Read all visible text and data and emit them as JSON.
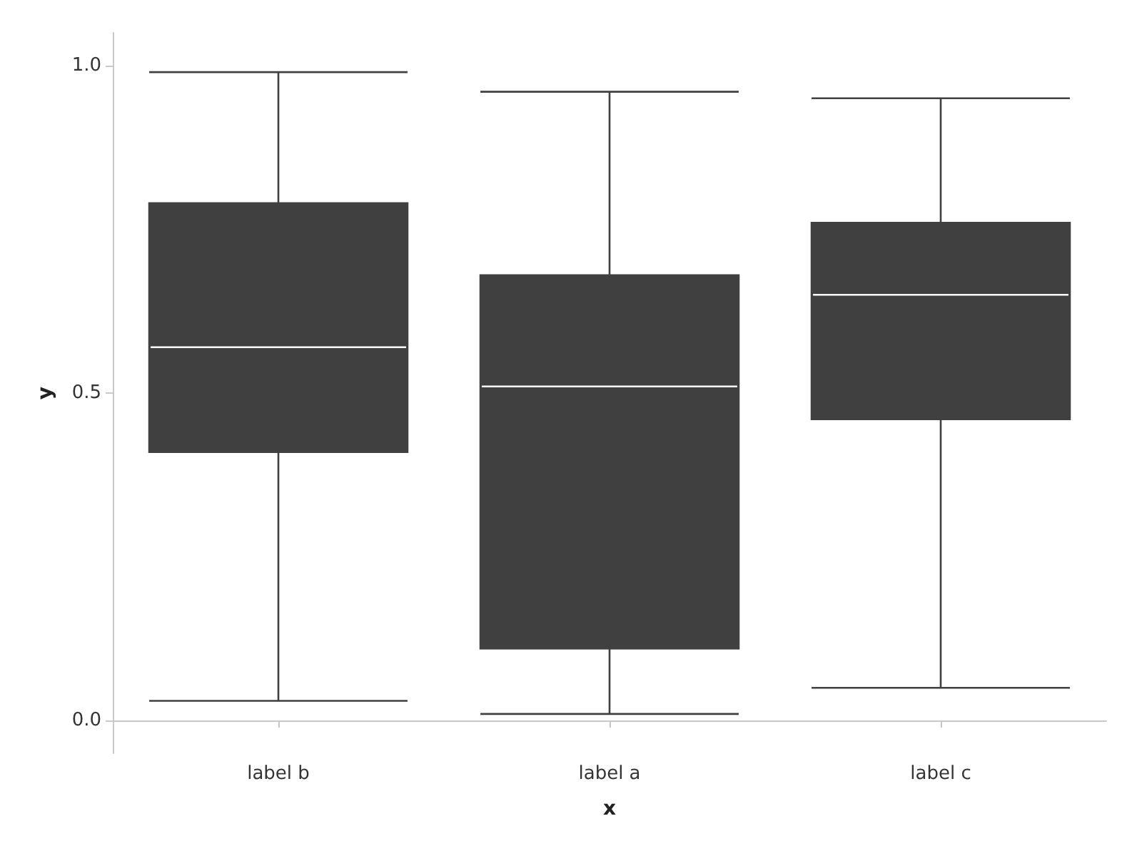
{
  "chart_data": {
    "type": "box",
    "xlabel": "x",
    "ylabel": "y",
    "categories": [
      "label b",
      "label a",
      "label c"
    ],
    "color": "#404040",
    "boxes": [
      {
        "low": 0.03,
        "q1": 0.41,
        "median": 0.57,
        "q3": 0.79,
        "high": 0.99
      },
      {
        "low": 0.01,
        "q1": 0.11,
        "median": 0.51,
        "q3": 0.68,
        "high": 0.96
      },
      {
        "low": 0.05,
        "q1": 0.46,
        "median": 0.65,
        "q3": 0.76,
        "high": 0.95
      }
    ],
    "ylim": [
      -0.05,
      1.05
    ],
    "yticks": [
      {
        "value": 0,
        "label": "0.0"
      },
      {
        "value": 0.5,
        "label": "0.5"
      },
      {
        "value": 1,
        "label": "1.0"
      }
    ]
  }
}
